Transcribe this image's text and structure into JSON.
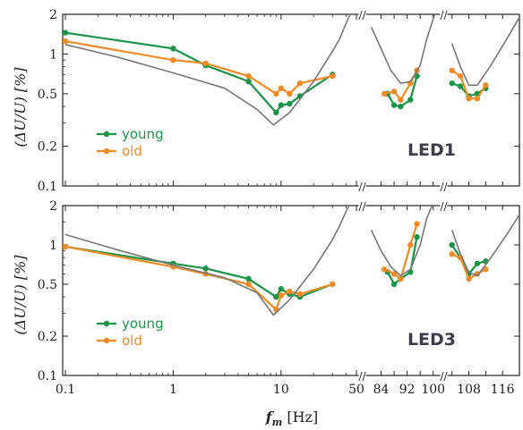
{
  "colors": {
    "young": "#1a9448",
    "old": "#ef8a24",
    "reference": "#777777"
  },
  "axis": {
    "ylabel": "(ΔU/U) [%]",
    "xlabel_var": "f",
    "xlabel_sub": "m",
    "xlabel_unit": "[Hz]",
    "yticks": [
      "0.1",
      "0.2",
      "0.5",
      "1",
      "2"
    ],
    "xticks_log": [
      "0.1",
      "1",
      "10",
      "50"
    ],
    "xticks_b": [
      "84",
      "92",
      "100"
    ],
    "xticks_c": [
      "108",
      "116"
    ],
    "break_mark": "//"
  },
  "chart_data": [
    {
      "type": "line",
      "panel_label": "LED1",
      "xscale": "log (0.1–50 Hz), then linear segments 80–102 Hz and 103–120 Hz",
      "ylim": [
        0.1,
        2
      ],
      "yscale": "log",
      "legend": {
        "placement": "lower-left",
        "entries": [
          "young",
          "old"
        ]
      },
      "series": [
        {
          "name": "young",
          "x": [
            0.1,
            1,
            2,
            5,
            9,
            10,
            12,
            15,
            30,
            86,
            88,
            90,
            93,
            95,
            104,
            106,
            108,
            110,
            112
          ],
          "y": [
            1.45,
            1.1,
            0.82,
            0.62,
            0.36,
            0.41,
            0.42,
            0.48,
            0.7,
            0.5,
            0.41,
            0.4,
            0.45,
            0.68,
            0.6,
            0.57,
            0.48,
            0.5,
            0.55
          ]
        },
        {
          "name": "old",
          "x": [
            0.1,
            1,
            2,
            5,
            9,
            10,
            12,
            15,
            30,
            85,
            88,
            90,
            93,
            95,
            104,
            106,
            108,
            110,
            112
          ],
          "y": [
            1.25,
            0.9,
            0.85,
            0.68,
            0.5,
            0.55,
            0.5,
            0.6,
            0.68,
            0.5,
            0.52,
            0.45,
            0.6,
            0.75,
            0.75,
            0.68,
            0.46,
            0.46,
            0.58
          ]
        },
        {
          "x": [
            0.1,
            0.3,
            1,
            3,
            6,
            8.5,
            12,
            20,
            30,
            35,
            40,
            45,
            50,
            81,
            84,
            87,
            90,
            93,
            96,
            98,
            101,
            104,
            106,
            108,
            110,
            113,
            117,
            120
          ],
          "y": [
            1.18,
            0.95,
            0.72,
            0.55,
            0.38,
            0.29,
            0.36,
            0.62,
            1.05,
            1.3,
            1.7,
            2.1,
            2.6,
            1.6,
            1.1,
            0.75,
            0.6,
            0.62,
            0.82,
            1.3,
            2.2,
            1.2,
            0.8,
            0.58,
            0.58,
            0.8,
            1.3,
            1.9
          ]
        }
      ]
    },
    {
      "type": "line",
      "panel_label": "LED3",
      "xscale": "log (0.1–50 Hz), then linear segments 80–102 Hz and 103–120 Hz",
      "ylim": [
        0.1,
        2
      ],
      "yscale": "log",
      "legend": {
        "placement": "lower-left",
        "entries": [
          "young",
          "old"
        ]
      },
      "series": [
        {
          "name": "young",
          "x": [
            0.1,
            1,
            2,
            5,
            9,
            10,
            12,
            15,
            30,
            86,
            88,
            90,
            93,
            95,
            104,
            106,
            108,
            110,
            112
          ],
          "y": [
            0.97,
            0.72,
            0.66,
            0.55,
            0.4,
            0.46,
            0.42,
            0.4,
            0.5,
            0.62,
            0.5,
            0.55,
            0.62,
            1.15,
            1.0,
            0.8,
            0.6,
            0.72,
            0.75
          ]
        },
        {
          "name": "old",
          "x": [
            0.1,
            1,
            2,
            5,
            9,
            10,
            12,
            15,
            30,
            85,
            88,
            90,
            93,
            95,
            104,
            106,
            108,
            110,
            112
          ],
          "y": [
            0.97,
            0.68,
            0.6,
            0.5,
            0.32,
            0.41,
            0.44,
            0.42,
            0.5,
            0.65,
            0.6,
            0.55,
            1.0,
            1.45,
            0.85,
            0.8,
            0.55,
            0.6,
            0.65
          ]
        },
        {
          "x": [
            0.1,
            0.3,
            1,
            3,
            6,
            8.5,
            12,
            20,
            30,
            35,
            40,
            45,
            50,
            81,
            84,
            87,
            90,
            93,
            96,
            98,
            101,
            104,
            106,
            108,
            110,
            113,
            117,
            120
          ],
          "y": [
            1.2,
            0.92,
            0.7,
            0.56,
            0.43,
            0.29,
            0.38,
            0.65,
            1.1,
            1.4,
            1.8,
            2.2,
            2.7,
            1.3,
            0.9,
            0.68,
            0.58,
            0.65,
            1.0,
            1.6,
            2.4,
            1.3,
            0.85,
            0.62,
            0.58,
            0.78,
            1.2,
            1.7
          ]
        }
      ]
    }
  ]
}
